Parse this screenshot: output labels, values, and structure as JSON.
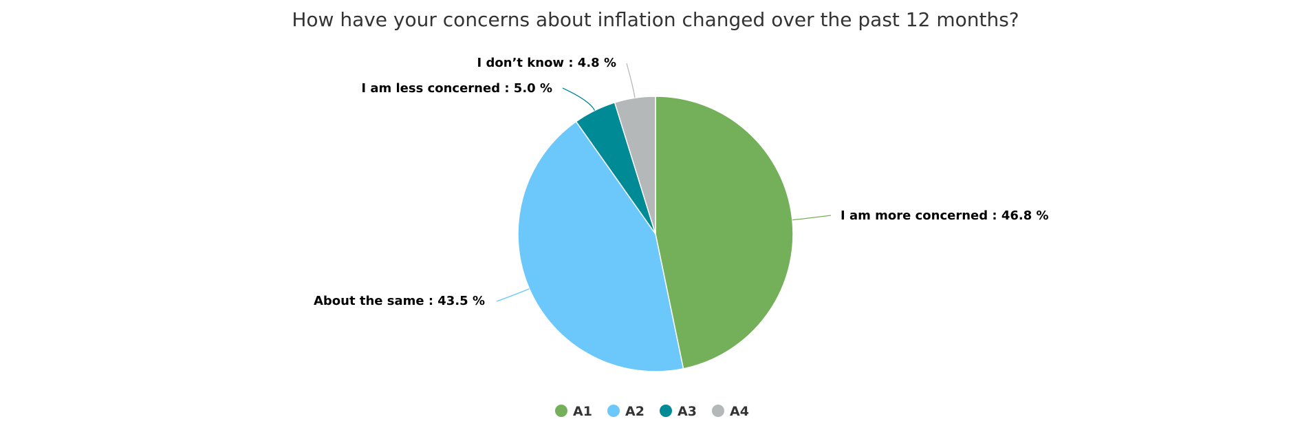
{
  "chart_data": {
    "type": "pie",
    "title": "How have your concerns about inflation changed over the past 12 months?",
    "slices": [
      {
        "series": "A1",
        "label": "I am more concerned",
        "value": 46.8,
        "color": "#74B05A"
      },
      {
        "series": "A2",
        "label": "About the same",
        "value": 43.5,
        "color": "#6CC8FB"
      },
      {
        "series": "A3",
        "label": "I am less concerned",
        "value": 5.0,
        "color": "#008A96"
      },
      {
        "series": "A4",
        "label": "I don’t know",
        "value": 4.8,
        "color": "#B4B8B8"
      }
    ],
    "legend": {
      "placement": "bottom-center",
      "items": [
        "A1",
        "A2",
        "A3",
        "A4"
      ]
    },
    "value_unit": "%"
  }
}
